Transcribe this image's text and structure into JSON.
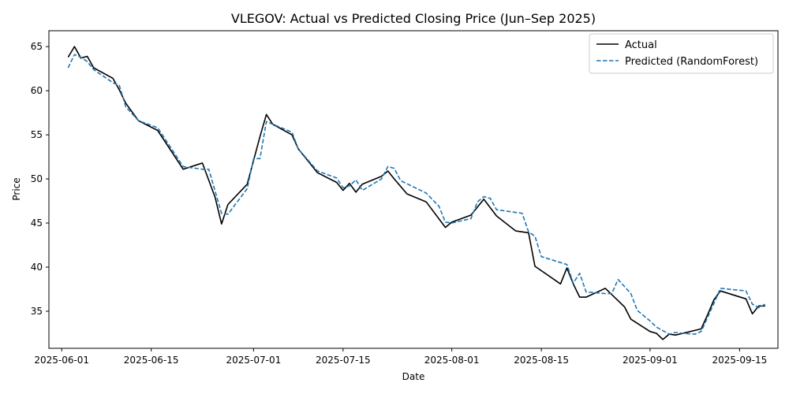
{
  "chart_data": {
    "type": "line",
    "title": "VLEGOV: Actual vs Predicted Closing Price (Jun–Sep 2025)",
    "xlabel": "Date",
    "ylabel": "Price",
    "xlim": [
      "2025-05-30",
      "2025-09-21"
    ],
    "ylim": [
      30.8,
      66.8
    ],
    "x_ticks": [
      "2025-06-01",
      "2025-06-15",
      "2025-07-01",
      "2025-07-15",
      "2025-08-01",
      "2025-08-15",
      "2025-09-01",
      "2025-09-15"
    ],
    "y_ticks": [
      35,
      40,
      45,
      50,
      55,
      60,
      65
    ],
    "grid": false,
    "legend": "upper right",
    "colors": {
      "actual": "#000000",
      "predicted": "#1f77b4"
    },
    "series": [
      {
        "name": "Actual",
        "style": "solid",
        "points": [
          [
            "2025-06-02",
            63.8
          ],
          [
            "2025-06-03",
            65.0
          ],
          [
            "2025-06-04",
            63.7
          ],
          [
            "2025-06-05",
            63.9
          ],
          [
            "2025-06-06",
            62.6
          ],
          [
            "2025-06-09",
            61.4
          ],
          [
            "2025-06-10",
            60.1
          ],
          [
            "2025-06-11",
            58.6
          ],
          [
            "2025-06-13",
            56.6
          ],
          [
            "2025-06-16",
            55.5
          ],
          [
            "2025-06-20",
            51.1
          ],
          [
            "2025-06-23",
            51.8
          ],
          [
            "2025-06-25",
            47.9
          ],
          [
            "2025-06-26",
            44.9
          ],
          [
            "2025-06-27",
            47.1
          ],
          [
            "2025-06-30",
            49.4
          ],
          [
            "2025-07-02",
            54.8
          ],
          [
            "2025-07-03",
            57.3
          ],
          [
            "2025-07-04",
            56.2
          ],
          [
            "2025-07-07",
            55.0
          ],
          [
            "2025-07-08",
            53.4
          ],
          [
            "2025-07-11",
            50.7
          ],
          [
            "2025-07-14",
            49.6
          ],
          [
            "2025-07-15",
            48.7
          ],
          [
            "2025-07-16",
            49.5
          ],
          [
            "2025-07-17",
            48.5
          ],
          [
            "2025-07-18",
            49.4
          ],
          [
            "2025-07-21",
            50.3
          ],
          [
            "2025-07-22",
            50.9
          ],
          [
            "2025-07-23",
            50.0
          ],
          [
            "2025-07-25",
            48.3
          ],
          [
            "2025-07-28",
            47.4
          ],
          [
            "2025-07-31",
            44.5
          ],
          [
            "2025-08-01",
            45.1
          ],
          [
            "2025-08-04",
            45.9
          ],
          [
            "2025-08-06",
            47.7
          ],
          [
            "2025-08-08",
            45.8
          ],
          [
            "2025-08-11",
            44.1
          ],
          [
            "2025-08-13",
            43.9
          ],
          [
            "2025-08-14",
            40.1
          ],
          [
            "2025-08-18",
            38.1
          ],
          [
            "2025-08-19",
            39.9
          ],
          [
            "2025-08-20",
            38.1
          ],
          [
            "2025-08-21",
            36.6
          ],
          [
            "2025-08-22",
            36.6
          ],
          [
            "2025-08-25",
            37.6
          ],
          [
            "2025-08-28",
            35.5
          ],
          [
            "2025-08-29",
            34.1
          ],
          [
            "2025-09-01",
            32.7
          ],
          [
            "2025-09-02",
            32.5
          ],
          [
            "2025-09-03",
            31.8
          ],
          [
            "2025-09-04",
            32.4
          ],
          [
            "2025-09-05",
            32.3
          ],
          [
            "2025-09-09",
            33.0
          ],
          [
            "2025-09-10",
            34.6
          ],
          [
            "2025-09-11",
            36.3
          ],
          [
            "2025-09-12",
            37.3
          ],
          [
            "2025-09-16",
            36.4
          ],
          [
            "2025-09-17",
            34.7
          ],
          [
            "2025-09-18",
            35.6
          ],
          [
            "2025-09-19",
            35.6
          ]
        ]
      },
      {
        "name": "Predicted (RandomForest)",
        "style": "dashed",
        "points": [
          [
            "2025-06-02",
            62.6
          ],
          [
            "2025-06-03",
            64.1
          ],
          [
            "2025-06-04",
            63.8
          ],
          [
            "2025-06-05",
            63.3
          ],
          [
            "2025-06-06",
            62.4
          ],
          [
            "2025-06-09",
            60.9
          ],
          [
            "2025-06-10",
            60.6
          ],
          [
            "2025-06-11",
            58.2
          ],
          [
            "2025-06-13",
            56.6
          ],
          [
            "2025-06-16",
            55.8
          ],
          [
            "2025-06-20",
            51.4
          ],
          [
            "2025-06-23",
            51.1
          ],
          [
            "2025-06-24",
            51.1
          ],
          [
            "2025-06-26",
            46.1
          ],
          [
            "2025-06-27",
            46.0
          ],
          [
            "2025-06-30",
            48.9
          ],
          [
            "2025-07-01",
            52.3
          ],
          [
            "2025-07-02",
            52.3
          ],
          [
            "2025-07-03",
            56.5
          ],
          [
            "2025-07-07",
            55.3
          ],
          [
            "2025-07-08",
            53.4
          ],
          [
            "2025-07-11",
            50.9
          ],
          [
            "2025-07-14",
            50.1
          ],
          [
            "2025-07-15",
            49.0
          ],
          [
            "2025-07-16",
            49.2
          ],
          [
            "2025-07-17",
            49.9
          ],
          [
            "2025-07-18",
            48.7
          ],
          [
            "2025-07-21",
            50.0
          ],
          [
            "2025-07-22",
            51.4
          ],
          [
            "2025-07-23",
            51.2
          ],
          [
            "2025-07-24",
            49.8
          ],
          [
            "2025-07-28",
            48.4
          ],
          [
            "2025-07-30",
            46.9
          ],
          [
            "2025-07-31",
            45.1
          ],
          [
            "2025-08-01",
            45.0
          ],
          [
            "2025-08-04",
            45.5
          ],
          [
            "2025-08-05",
            47.4
          ],
          [
            "2025-08-06",
            48.0
          ],
          [
            "2025-08-07",
            47.8
          ],
          [
            "2025-08-08",
            46.5
          ],
          [
            "2025-08-12",
            46.1
          ],
          [
            "2025-08-13",
            44.0
          ],
          [
            "2025-08-14",
            43.5
          ],
          [
            "2025-08-15",
            41.2
          ],
          [
            "2025-08-19",
            40.3
          ],
          [
            "2025-08-20",
            38.2
          ],
          [
            "2025-08-21",
            39.3
          ],
          [
            "2025-08-22",
            37.2
          ],
          [
            "2025-08-25",
            37.0
          ],
          [
            "2025-08-26",
            37.0
          ],
          [
            "2025-08-27",
            38.6
          ],
          [
            "2025-08-29",
            37.0
          ],
          [
            "2025-08-30",
            35.1
          ],
          [
            "2025-09-01",
            33.9
          ],
          [
            "2025-09-02",
            33.2
          ],
          [
            "2025-09-04",
            32.4
          ],
          [
            "2025-09-05",
            32.6
          ],
          [
            "2025-09-06",
            32.5
          ],
          [
            "2025-09-08",
            32.4
          ],
          [
            "2025-09-09",
            32.7
          ],
          [
            "2025-09-11",
            35.9
          ],
          [
            "2025-09-12",
            37.6
          ],
          [
            "2025-09-16",
            37.3
          ],
          [
            "2025-09-17",
            35.8
          ],
          [
            "2025-09-18",
            35.4
          ],
          [
            "2025-09-19",
            35.8
          ]
        ]
      }
    ]
  }
}
